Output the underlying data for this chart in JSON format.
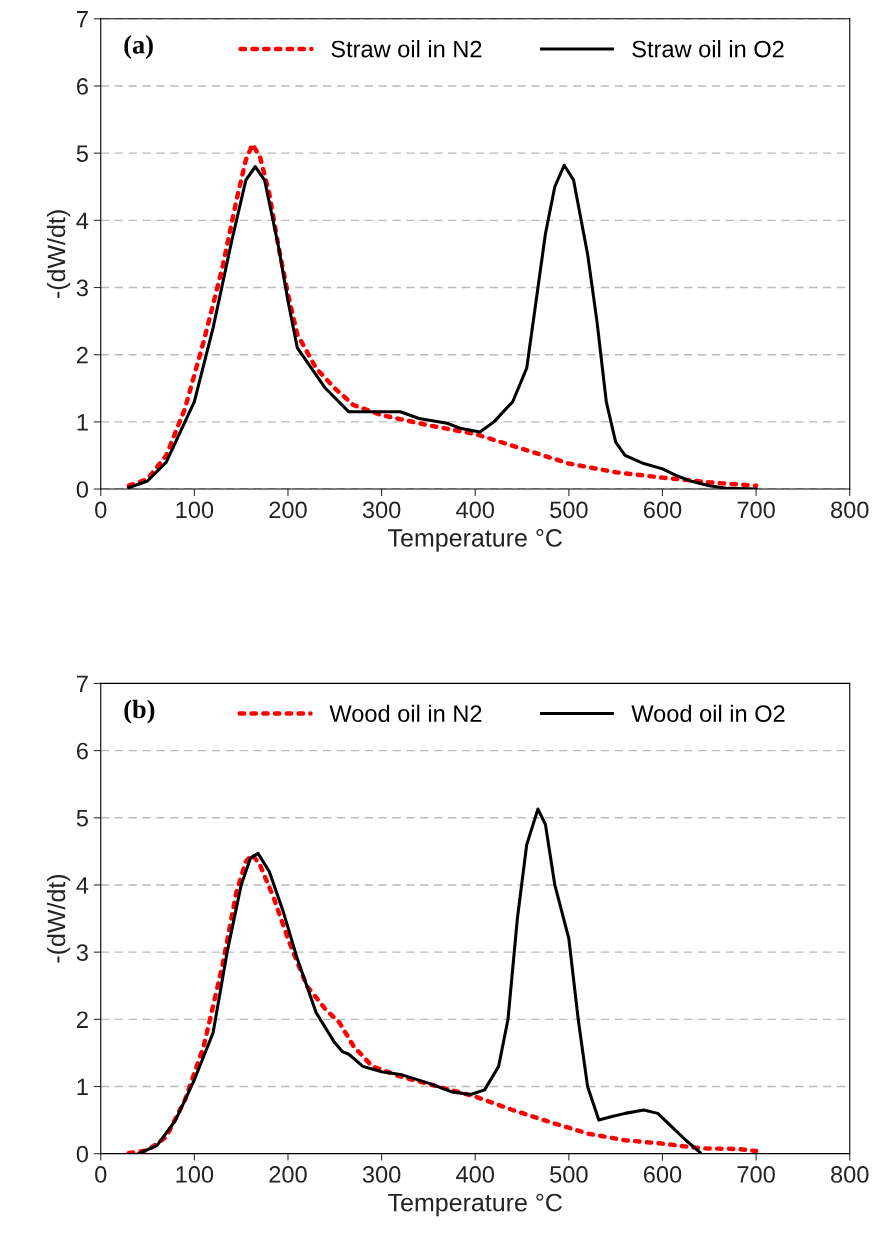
{
  "chart_data": [
    {
      "type": "line",
      "xlabel": "Temperature °C",
      "ylabel": "-(dW/dt)",
      "annotations": [
        "(a)"
      ],
      "xlim": [
        0,
        800
      ],
      "ylim": [
        0,
        7
      ],
      "xticks": [
        0,
        100,
        200,
        300,
        400,
        500,
        600,
        700,
        800
      ],
      "yticks": [
        0,
        1,
        2,
        3,
        4,
        5,
        6,
        7
      ],
      "grid": "y",
      "legend": "top",
      "series": [
        {
          "name": "Straw oil in N2",
          "color": "#ff0000",
          "line_style": "dotted",
          "x": [
            30,
            50,
            70,
            90,
            110,
            130,
            145,
            155,
            162,
            170,
            180,
            190,
            200,
            210,
            230,
            250,
            270,
            300,
            350,
            400,
            450,
            500,
            550,
            600,
            650,
            700
          ],
          "values": [
            0.05,
            0.15,
            0.5,
            1.2,
            2.2,
            3.3,
            4.3,
            4.9,
            5.13,
            4.95,
            4.4,
            3.6,
            2.9,
            2.3,
            1.8,
            1.5,
            1.25,
            1.1,
            0.95,
            0.82,
            0.6,
            0.38,
            0.25,
            0.17,
            0.1,
            0.05
          ]
        },
        {
          "name": "Straw oil in O2",
          "color": "#000000",
          "line_style": "solid",
          "x": [
            30,
            50,
            70,
            100,
            120,
            140,
            155,
            165,
            175,
            190,
            200,
            210,
            225,
            240,
            265,
            300,
            320,
            340,
            370,
            385,
            405,
            420,
            440,
            455,
            465,
            475,
            485,
            495,
            505,
            520,
            530,
            540,
            550,
            560,
            580,
            600,
            615,
            630,
            650,
            670,
            700
          ],
          "values": [
            0.02,
            0.12,
            0.4,
            1.3,
            2.4,
            3.7,
            4.6,
            4.8,
            4.6,
            3.6,
            2.8,
            2.1,
            1.8,
            1.5,
            1.15,
            1.15,
            1.15,
            1.05,
            0.98,
            0.9,
            0.85,
            1.0,
            1.3,
            1.8,
            2.8,
            3.8,
            4.5,
            4.82,
            4.6,
            3.5,
            2.5,
            1.3,
            0.7,
            0.5,
            0.38,
            0.3,
            0.2,
            0.12,
            0.05,
            0.01,
            0.0
          ]
        }
      ]
    },
    {
      "type": "line",
      "xlabel": "Temperature °C",
      "ylabel": "-(dW/dt)",
      "annotations": [
        "(b)"
      ],
      "xlim": [
        0,
        800
      ],
      "ylim": [
        0,
        7
      ],
      "xticks": [
        0,
        100,
        200,
        300,
        400,
        500,
        600,
        700,
        800
      ],
      "yticks": [
        0,
        1,
        2,
        3,
        4,
        5,
        6,
        7
      ],
      "grid": "y",
      "legend": "top",
      "series": [
        {
          "name": "Wood oil in N2",
          "color": "#ff0000",
          "line_style": "dotted",
          "x": [
            30,
            50,
            70,
            90,
            110,
            130,
            145,
            155,
            162,
            170,
            185,
            200,
            220,
            240,
            255,
            270,
            290,
            320,
            360,
            400,
            440,
            480,
            520,
            560,
            600,
            640,
            680,
            700
          ],
          "values": [
            0.01,
            0.05,
            0.25,
            0.8,
            1.6,
            2.8,
            3.9,
            4.35,
            4.45,
            4.3,
            3.8,
            3.2,
            2.5,
            2.15,
            1.95,
            1.6,
            1.3,
            1.15,
            1.0,
            0.85,
            0.65,
            0.47,
            0.3,
            0.2,
            0.15,
            0.08,
            0.07,
            0.04
          ]
        },
        {
          "name": "Wood oil in O2",
          "color": "#000000",
          "line_style": "solid",
          "x": [
            40,
            60,
            80,
            100,
            120,
            135,
            150,
            160,
            168,
            180,
            195,
            210,
            230,
            250,
            258,
            265,
            280,
            300,
            320,
            350,
            375,
            395,
            410,
            425,
            435,
            445,
            455,
            467,
            475,
            485,
            500,
            510,
            520,
            532,
            545,
            560,
            580,
            595,
            610,
            625,
            640
          ],
          "values": [
            0.0,
            0.12,
            0.5,
            1.1,
            1.8,
            3.0,
            4.0,
            4.4,
            4.47,
            4.2,
            3.6,
            2.9,
            2.1,
            1.65,
            1.52,
            1.48,
            1.3,
            1.22,
            1.18,
            1.05,
            0.92,
            0.88,
            0.95,
            1.3,
            2.0,
            3.5,
            4.6,
            5.13,
            4.9,
            4.0,
            3.2,
            2.0,
            1.0,
            0.5,
            0.55,
            0.6,
            0.65,
            0.6,
            0.4,
            0.2,
            0.02
          ]
        }
      ]
    }
  ]
}
